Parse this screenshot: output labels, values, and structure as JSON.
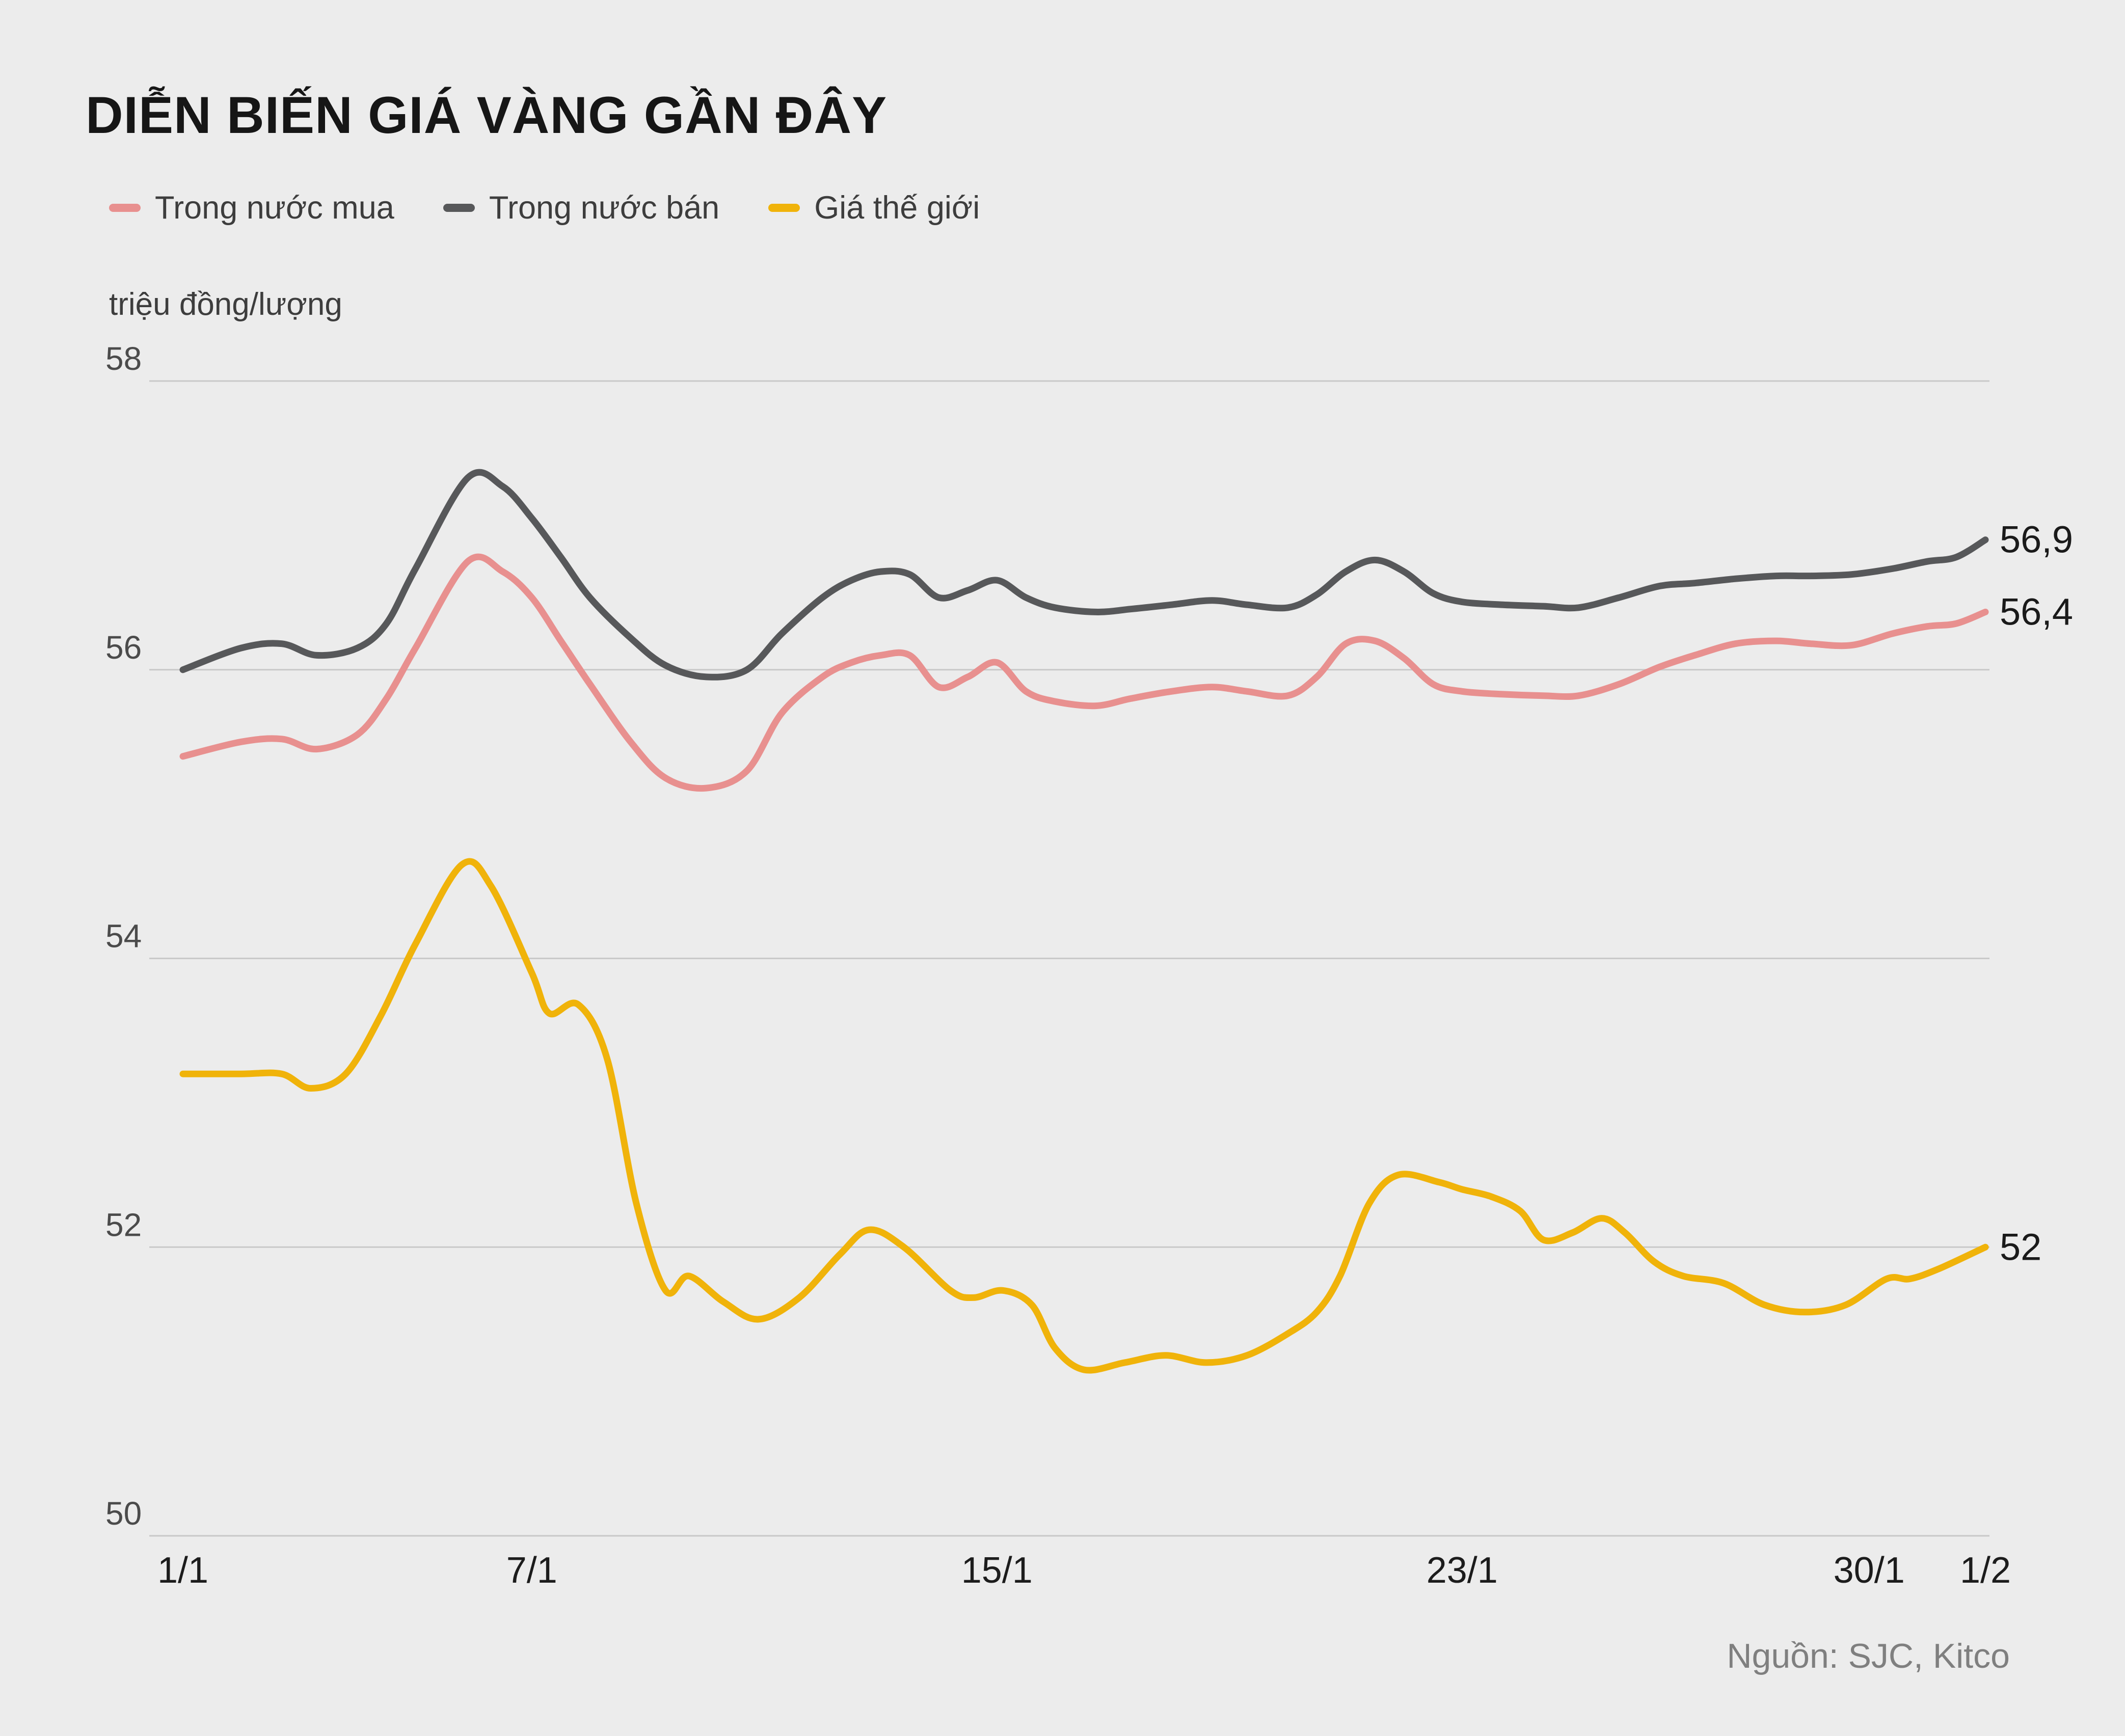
{
  "page": {
    "background": "#ececec"
  },
  "chart_data": {
    "type": "line",
    "title": "DIỄN BIẾN GIÁ VÀNG GẦN ĐÂY",
    "ylabel": "triệu đồng/lượng",
    "source": "Nguồn: SJC, Kitco",
    "ylim": [
      50,
      58
    ],
    "xlim_days": [
      0,
      31
    ],
    "x_unit": "days since 1/1",
    "grid": true,
    "legend_position": "top-left",
    "grid_color": "#c9c9c9",
    "y_axis_text_color": "#4b4b4b",
    "x_axis_text_color": "#1c1c1c",
    "end_label_color": "#1a1a1a",
    "y_ticks": [
      58,
      56,
      54,
      52,
      50
    ],
    "x_ticks": [
      {
        "label": "1/1",
        "day": 0
      },
      {
        "label": "7/1",
        "day": 6
      },
      {
        "label": "15/1",
        "day": 14
      },
      {
        "label": "23/1",
        "day": 22
      },
      {
        "label": "30/1",
        "day": 29
      },
      {
        "label": "1/2",
        "day": 31
      }
    ],
    "series": [
      {
        "name": "Trong nước mua",
        "color": "#e8908f",
        "end_label": "56,4",
        "end_value": 56.4,
        "points": [
          [
            0,
            55.4
          ],
          [
            1,
            55.5
          ],
          [
            1.7,
            55.52
          ],
          [
            2.3,
            55.45
          ],
          [
            3,
            55.55
          ],
          [
            3.5,
            55.8
          ],
          [
            4,
            56.15
          ],
          [
            4.9,
            56.75
          ],
          [
            5.5,
            56.68
          ],
          [
            6,
            56.5
          ],
          [
            6.5,
            56.2
          ],
          [
            7,
            55.9
          ],
          [
            7.7,
            55.5
          ],
          [
            8.3,
            55.25
          ],
          [
            9,
            55.18
          ],
          [
            9.7,
            55.3
          ],
          [
            10.3,
            55.7
          ],
          [
            11,
            55.95
          ],
          [
            11.5,
            56.05
          ],
          [
            12,
            56.1
          ],
          [
            12.5,
            56.1
          ],
          [
            13,
            55.88
          ],
          [
            13.5,
            55.95
          ],
          [
            14,
            56.05
          ],
          [
            14.5,
            55.85
          ],
          [
            15,
            55.78
          ],
          [
            15.7,
            55.75
          ],
          [
            16.3,
            55.8
          ],
          [
            17,
            55.85
          ],
          [
            17.7,
            55.88
          ],
          [
            18.3,
            55.85
          ],
          [
            19,
            55.82
          ],
          [
            19.5,
            55.95
          ],
          [
            20,
            56.18
          ],
          [
            20.5,
            56.2
          ],
          [
            21,
            56.08
          ],
          [
            21.5,
            55.9
          ],
          [
            22,
            55.85
          ],
          [
            22.7,
            55.83
          ],
          [
            23.4,
            55.82
          ],
          [
            24,
            55.82
          ],
          [
            24.7,
            55.9
          ],
          [
            25.4,
            56.02
          ],
          [
            26,
            56.1
          ],
          [
            26.7,
            56.18
          ],
          [
            27.4,
            56.2
          ],
          [
            28,
            56.18
          ],
          [
            28.7,
            56.17
          ],
          [
            29.4,
            56.25
          ],
          [
            30,
            56.3
          ],
          [
            30.5,
            56.32
          ],
          [
            31,
            56.4
          ]
        ]
      },
      {
        "name": "Trong nước bán",
        "color": "#57585a",
        "end_label": "56,9",
        "end_value": 56.9,
        "points": [
          [
            0,
            56.0
          ],
          [
            1,
            56.15
          ],
          [
            1.7,
            56.18
          ],
          [
            2.3,
            56.1
          ],
          [
            3,
            56.15
          ],
          [
            3.5,
            56.32
          ],
          [
            4,
            56.7
          ],
          [
            4.9,
            57.33
          ],
          [
            5.5,
            57.27
          ],
          [
            6,
            57.05
          ],
          [
            6.5,
            56.78
          ],
          [
            7,
            56.5
          ],
          [
            7.7,
            56.22
          ],
          [
            8.3,
            56.03
          ],
          [
            9,
            55.95
          ],
          [
            9.7,
            56.0
          ],
          [
            10.3,
            56.25
          ],
          [
            11,
            56.5
          ],
          [
            11.5,
            56.62
          ],
          [
            12,
            56.68
          ],
          [
            12.5,
            56.66
          ],
          [
            13,
            56.5
          ],
          [
            13.5,
            56.55
          ],
          [
            14,
            56.62
          ],
          [
            14.5,
            56.5
          ],
          [
            15,
            56.43
          ],
          [
            15.7,
            56.4
          ],
          [
            16.3,
            56.42
          ],
          [
            17,
            56.45
          ],
          [
            17.7,
            56.48
          ],
          [
            18.3,
            56.45
          ],
          [
            19,
            56.43
          ],
          [
            19.5,
            56.52
          ],
          [
            20,
            56.68
          ],
          [
            20.5,
            56.76
          ],
          [
            21,
            56.68
          ],
          [
            21.5,
            56.53
          ],
          [
            22,
            56.47
          ],
          [
            22.7,
            56.45
          ],
          [
            23.4,
            56.44
          ],
          [
            24,
            56.43
          ],
          [
            24.7,
            56.5
          ],
          [
            25.4,
            56.58
          ],
          [
            26,
            56.6
          ],
          [
            26.7,
            56.63
          ],
          [
            27.4,
            56.65
          ],
          [
            28,
            56.65
          ],
          [
            28.7,
            56.66
          ],
          [
            29.4,
            56.7
          ],
          [
            30,
            56.75
          ],
          [
            30.5,
            56.78
          ],
          [
            31,
            56.9
          ]
        ]
      },
      {
        "name": "Giá thế giới",
        "color": "#f0b30a",
        "end_label": "52",
        "end_value": 52.0,
        "points": [
          [
            0,
            53.2
          ],
          [
            1,
            53.2
          ],
          [
            1.7,
            53.2
          ],
          [
            2.2,
            53.1
          ],
          [
            2.8,
            53.2
          ],
          [
            3.4,
            53.6
          ],
          [
            4,
            54.1
          ],
          [
            4.8,
            54.65
          ],
          [
            5.3,
            54.5
          ],
          [
            6,
            53.9
          ],
          [
            6.3,
            53.62
          ],
          [
            6.8,
            53.68
          ],
          [
            7.3,
            53.3
          ],
          [
            7.8,
            52.3
          ],
          [
            8.3,
            51.7
          ],
          [
            8.7,
            51.8
          ],
          [
            9.3,
            51.62
          ],
          [
            9.9,
            51.5
          ],
          [
            10.6,
            51.65
          ],
          [
            11.3,
            51.95
          ],
          [
            11.8,
            52.12
          ],
          [
            12.4,
            52.0
          ],
          [
            13.2,
            51.7
          ],
          [
            13.6,
            51.65
          ],
          [
            14.1,
            51.7
          ],
          [
            14.6,
            51.6
          ],
          [
            15,
            51.3
          ],
          [
            15.5,
            51.15
          ],
          [
            16.2,
            51.2
          ],
          [
            16.9,
            51.25
          ],
          [
            17.6,
            51.2
          ],
          [
            18.3,
            51.25
          ],
          [
            19,
            51.4
          ],
          [
            19.5,
            51.55
          ],
          [
            19.9,
            51.8
          ],
          [
            20.4,
            52.3
          ],
          [
            20.9,
            52.5
          ],
          [
            21.6,
            52.45
          ],
          [
            22,
            52.4
          ],
          [
            22.5,
            52.35
          ],
          [
            23,
            52.25
          ],
          [
            23.4,
            52.05
          ],
          [
            23.9,
            52.1
          ],
          [
            24.4,
            52.2
          ],
          [
            24.8,
            52.1
          ],
          [
            25.3,
            51.9
          ],
          [
            25.8,
            51.8
          ],
          [
            26.5,
            51.75
          ],
          [
            27.2,
            51.6
          ],
          [
            27.9,
            51.55
          ],
          [
            28.6,
            51.6
          ],
          [
            29.3,
            51.78
          ],
          [
            29.7,
            51.78
          ],
          [
            30.2,
            51.85
          ],
          [
            31,
            52.0
          ]
        ]
      }
    ]
  }
}
